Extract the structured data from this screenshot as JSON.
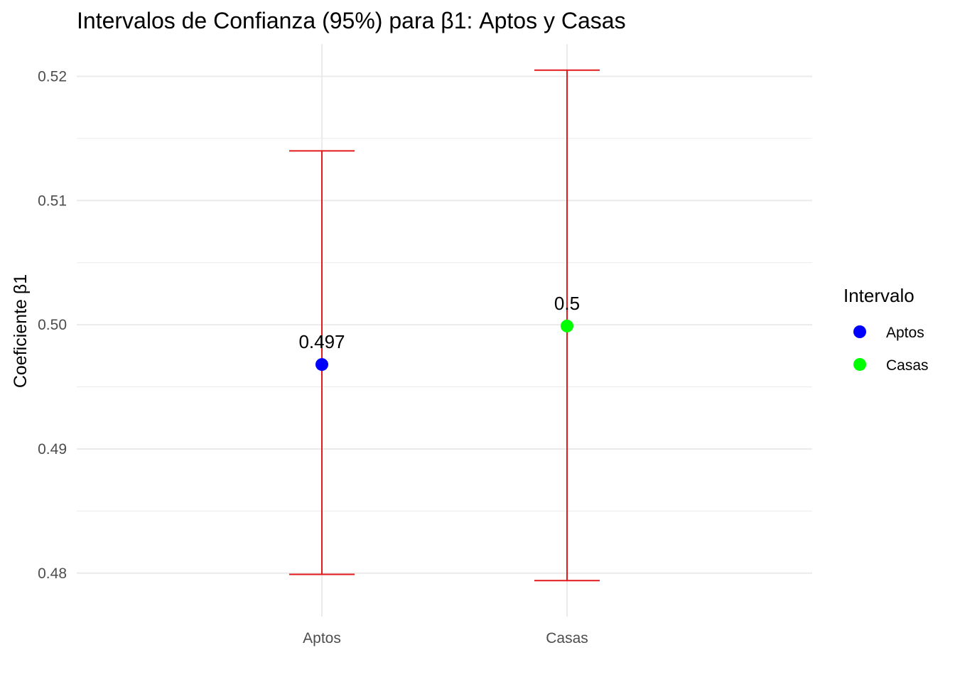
{
  "chart_data": {
    "type": "errorbar",
    "title": "Intervalos de Confianza (95%) para β1: Aptos y Casas",
    "xlabel": "",
    "ylabel": "Coeficiente β1",
    "categories": [
      "Aptos",
      "Casas"
    ],
    "estimates": [
      0.4968,
      0.4999
    ],
    "lower": [
      0.4799,
      0.4794
    ],
    "upper": [
      0.514,
      0.5205
    ],
    "point_labels": [
      "0.497",
      "0.5"
    ],
    "point_colors": [
      "#0000FF",
      "#00FF00"
    ],
    "errorbar_color": "#E31A1C",
    "ylim": [
      0.4765,
      0.5226
    ],
    "yticks": [
      0.48,
      0.49,
      0.5,
      0.51,
      0.52
    ],
    "ytick_labels": [
      "0.48",
      "0.49",
      "0.50",
      "0.51",
      "0.52"
    ],
    "grid": true,
    "legend": {
      "title": "Intervalo",
      "placement": "right",
      "items": [
        {
          "label": "Aptos",
          "color": "#0000FF"
        },
        {
          "label": "Casas",
          "color": "#00FF00"
        }
      ]
    }
  }
}
